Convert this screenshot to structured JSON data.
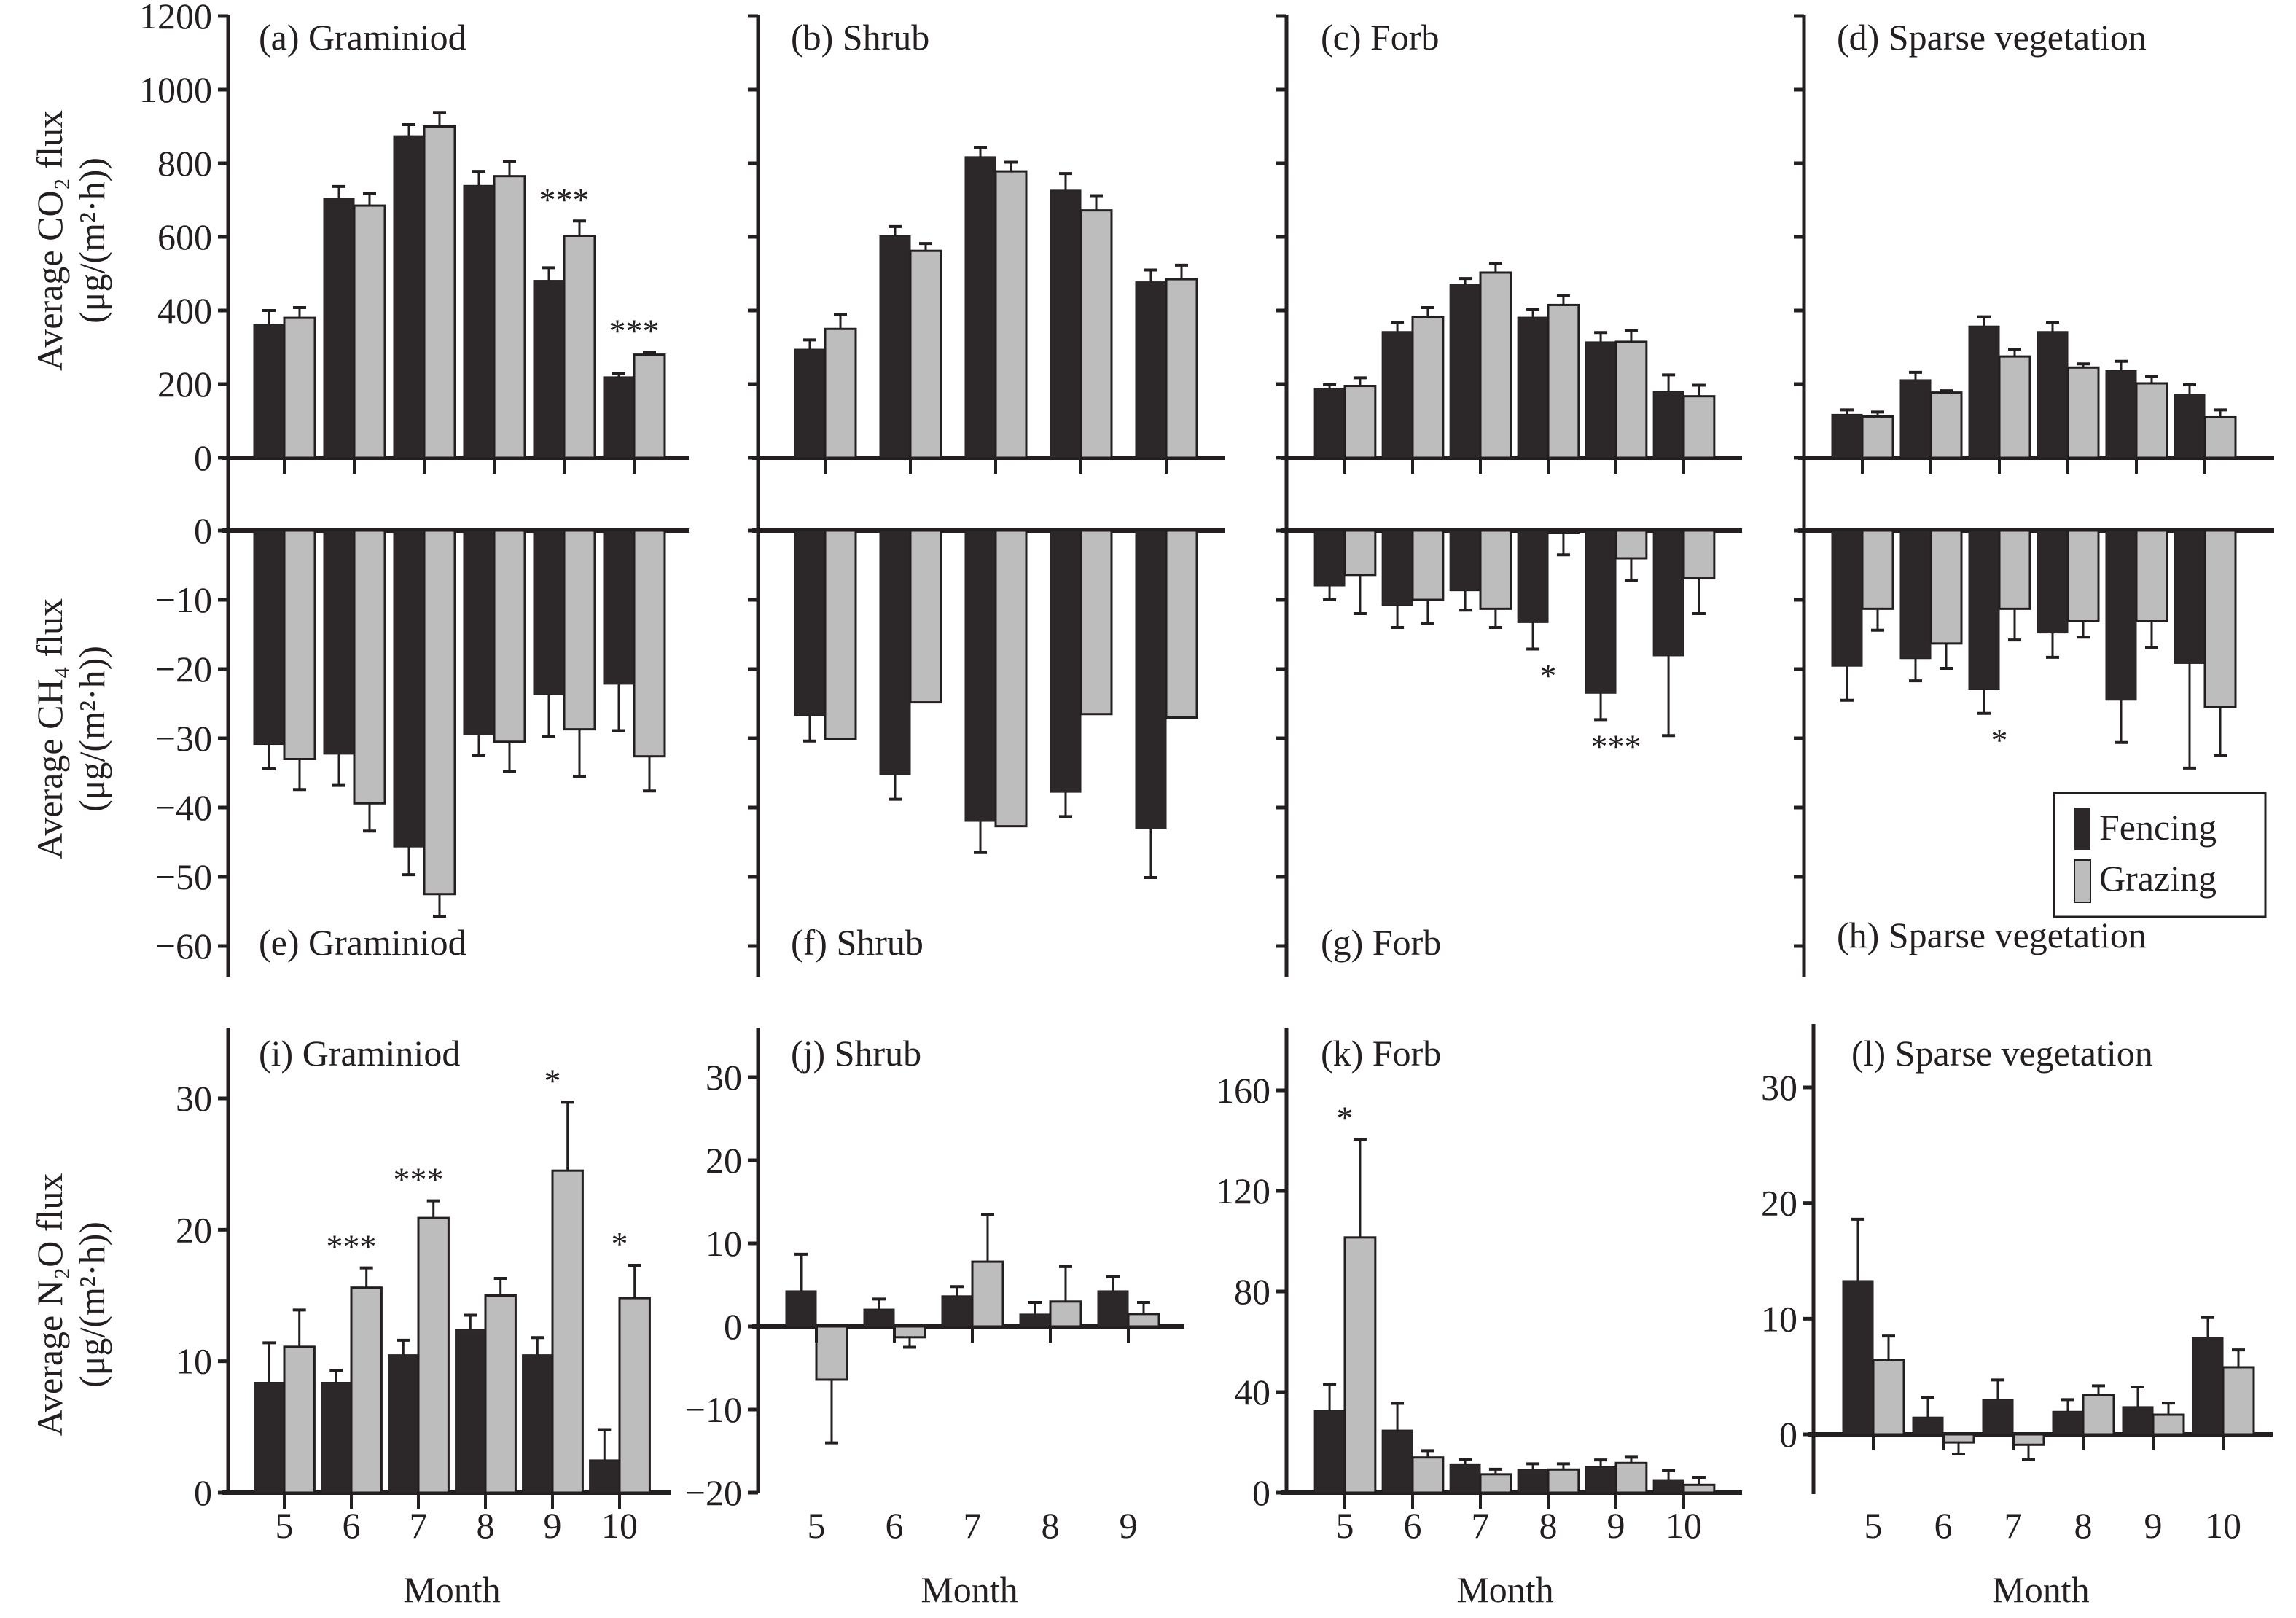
{
  "figure": {
    "legend": [
      {
        "name": "Fencing",
        "color": "#2c2829"
      },
      {
        "name": "Grazing",
        "color": "#bdbdbd"
      }
    ],
    "xlabel": "Month",
    "row_ylabels": {
      "co2": [
        "Average CO₂ flux",
        "(μg/(m²·h))"
      ],
      "ch4": [
        "Average CH₄ flux",
        "(μg/(m²·h))"
      ],
      "n2o": [
        "Average N₂O flux",
        "(μg/(m²·h))"
      ]
    }
  },
  "chart_data": [
    {
      "id": "a",
      "type": "bar",
      "row": "co2",
      "title": "(a) Graminiod",
      "categories": [
        "5",
        "6",
        "7",
        "8",
        "9",
        "10"
      ],
      "ylim": [
        0,
        1200
      ],
      "yticks": [
        0,
        200,
        400,
        600,
        800,
        1000,
        1200
      ],
      "show_yticklabels": true,
      "show_xticklabels": false,
      "series": [
        {
          "name": "Fencing",
          "values": [
            362,
            705,
            875,
            740,
            482,
            220
          ],
          "errors": [
            38,
            32,
            30,
            38,
            34,
            8
          ]
        },
        {
          "name": "Grazing",
          "values": [
            380,
            685,
            900,
            765,
            603,
            280
          ],
          "errors": [
            28,
            32,
            38,
            40,
            40,
            6
          ]
        }
      ],
      "significance": [
        null,
        null,
        null,
        null,
        "***",
        "***"
      ],
      "ylabel": "Average CO₂ flux (μg/(m²·h))"
    },
    {
      "id": "b",
      "type": "bar",
      "row": "co2",
      "title": "(b) Shrub",
      "categories": [
        "5",
        "6",
        "7",
        "8",
        "9"
      ],
      "ylim": [
        0,
        1200
      ],
      "yticks": [
        0,
        200,
        400,
        600,
        800,
        1000,
        1200
      ],
      "show_yticklabels": false,
      "show_xticklabels": false,
      "series": [
        {
          "name": "Fencing",
          "values": [
            295,
            603,
            818,
            727,
            478
          ],
          "errors": [
            25,
            25,
            25,
            45,
            32
          ]
        },
        {
          "name": "Grazing",
          "values": [
            350,
            562,
            778,
            672,
            485
          ],
          "errors": [
            40,
            20,
            25,
            40,
            38
          ]
        }
      ],
      "significance": [
        null,
        null,
        null,
        null,
        null
      ]
    },
    {
      "id": "c",
      "type": "bar",
      "row": "co2",
      "title": "(c) Forb",
      "categories": [
        "5",
        "6",
        "7",
        "8",
        "9",
        "10"
      ],
      "ylim": [
        0,
        1200
      ],
      "yticks": [
        0,
        200,
        400,
        600,
        800,
        1000,
        1200
      ],
      "show_yticklabels": false,
      "show_xticklabels": false,
      "series": [
        {
          "name": "Fencing",
          "values": [
            188,
            343,
            472,
            382,
            315,
            180
          ],
          "errors": [
            10,
            25,
            15,
            20,
            25,
            45
          ]
        },
        {
          "name": "Grazing",
          "values": [
            195,
            383,
            503,
            415,
            315,
            167
          ],
          "errors": [
            22,
            25,
            25,
            25,
            30,
            30
          ]
        }
      ],
      "significance": [
        null,
        null,
        null,
        null,
        null,
        null
      ]
    },
    {
      "id": "d",
      "type": "bar",
      "row": "co2",
      "title": "(d) Sparse vegetation",
      "categories": [
        "5",
        "6",
        "7",
        "8",
        "9",
        "10"
      ],
      "ylim": [
        0,
        1200
      ],
      "yticks": [
        0,
        200,
        400,
        600,
        800,
        1000,
        1200
      ],
      "show_yticklabels": false,
      "show_xticklabels": false,
      "series": [
        {
          "name": "Fencing",
          "values": [
            118,
            212,
            358,
            343,
            237,
            173
          ],
          "errors": [
            12,
            20,
            25,
            25,
            25,
            25
          ]
        },
        {
          "name": "Grazing",
          "values": [
            112,
            177,
            275,
            245,
            202,
            110
          ],
          "errors": [
            12,
            5,
            20,
            10,
            18,
            20
          ]
        }
      ],
      "significance": [
        null,
        null,
        null,
        null,
        null,
        null
      ]
    },
    {
      "id": "e",
      "type": "bar",
      "row": "ch4",
      "title": "(e) Graminiod",
      "categories": [
        "5",
        "6",
        "7",
        "8",
        "9",
        "10"
      ],
      "ylim": [
        -65,
        0
      ],
      "yticks": [
        0,
        -10,
        -20,
        -30,
        -40,
        -50,
        -60
      ],
      "show_yticklabels": true,
      "show_xticklabels": false,
      "series": [
        {
          "name": "Fencing",
          "values": [
            -30.9,
            -32.3,
            -45.7,
            -29.5,
            -23.7,
            -22.2
          ],
          "errors": [
            3.5,
            4.5,
            4,
            3,
            6,
            6.7
          ]
        },
        {
          "name": "Grazing",
          "values": [
            -33,
            -39.4,
            -52.5,
            -30.5,
            -28.7,
            -32.6
          ],
          "errors": [
            4.4,
            4,
            3.2,
            4.3,
            6.8,
            5
          ]
        }
      ],
      "significance": [
        null,
        null,
        null,
        null,
        null,
        null
      ],
      "ylabel": "Average CH₄ flux (μg/(m²·h))"
    },
    {
      "id": "f",
      "type": "bar",
      "row": "ch4",
      "title": "(f) Shrub",
      "categories": [
        "5",
        "6",
        "7",
        "8",
        "9"
      ],
      "ylim": [
        -65,
        0
      ],
      "yticks": [
        0,
        -10,
        -20,
        -30,
        -40,
        -50,
        -60
      ],
      "show_yticklabels": false,
      "show_xticklabels": false,
      "series": [
        {
          "name": "Fencing",
          "values": [
            -26.7,
            -35.3,
            -42,
            -37.8,
            -43.1
          ],
          "errors": [
            3.7,
            3.5,
            4.5,
            3.5,
            7
          ]
        },
        {
          "name": "Grazing",
          "values": [
            -30.1,
            -24.8,
            -42.7,
            -26.5,
            -27
          ]
        },
        {
          "name": "_",
          "values": []
        }
      ],
      "significance": [
        null,
        null,
        null,
        null,
        null
      ]
    },
    {
      "id": "g",
      "type": "bar",
      "row": "ch4",
      "title": "(g) Forb",
      "categories": [
        "5",
        "6",
        "7",
        "8",
        "9",
        "10"
      ],
      "ylim": [
        -65,
        0
      ],
      "yticks": [
        0,
        -10,
        -20,
        -30,
        -40,
        -50,
        -60
      ],
      "show_yticklabels": false,
      "show_xticklabels": false,
      "series": [
        {
          "name": "Fencing",
          "values": [
            -8,
            -10.8,
            -8.7,
            -13.3,
            -23.5,
            -18.1
          ],
          "errors": [
            2,
            3.2,
            2.8,
            3.8,
            3.8,
            11.5
          ]
        },
        {
          "name": "Grazing",
          "values": [
            -6.4,
            -10,
            -11.3,
            -0.3,
            -4,
            -6.9
          ],
          "errors": [
            5.6,
            3.4,
            2.7,
            3.2,
            3.2,
            5.1
          ]
        }
      ],
      "significance": [
        null,
        null,
        null,
        "*",
        "***",
        null
      ]
    },
    {
      "id": "h",
      "type": "bar",
      "row": "ch4",
      "title": "(h) Sparse vegetation",
      "categories": [
        "5",
        "6",
        "7",
        "8",
        "9",
        "10"
      ],
      "ylim": [
        -65,
        0
      ],
      "yticks": [
        0,
        -10,
        -20,
        -30,
        -40,
        -50,
        -60
      ],
      "show_yticklabels": false,
      "show_xticklabels": false,
      "series": [
        {
          "name": "Fencing",
          "values": [
            -19.6,
            -18.5,
            -23,
            -14.8,
            -24.5,
            -19.2
          ],
          "errors": [
            4.9,
            3.2,
            3.4,
            3.5,
            6.1,
            15.1
          ]
        },
        {
          "name": "Grazing",
          "values": [
            -11.3,
            -16.3,
            -11.3,
            -13,
            -13,
            -25.5
          ],
          "errors": [
            3.1,
            3.6,
            4.5,
            2.4,
            3.9,
            7
          ]
        }
      ],
      "significance": [
        null,
        null,
        "*",
        null,
        null,
        null
      ]
    },
    {
      "id": "i",
      "type": "bar",
      "row": "n2o",
      "title": "(i) Graminiod",
      "categories": [
        "5",
        "6",
        "7",
        "8",
        "9",
        "10"
      ],
      "ylim": [
        0,
        35
      ],
      "yticks": [
        0,
        10,
        20,
        30
      ],
      "show_yticklabels": true,
      "show_xticklabels": true,
      "series": [
        {
          "name": "Fencing",
          "values": [
            8.4,
            8.4,
            10.5,
            12.4,
            10.5,
            2.5
          ],
          "errors": [
            3,
            0.9,
            1.1,
            1.1,
            1.3,
            2.3
          ]
        },
        {
          "name": "Grazing",
          "values": [
            11.1,
            15.6,
            20.9,
            15,
            24.5,
            14.8
          ],
          "errors": [
            2.8,
            1.5,
            1.3,
            1.3,
            5.2,
            2.5
          ]
        }
      ],
      "significance": [
        null,
        "***",
        "***",
        null,
        "*",
        "*"
      ],
      "ylabel": "Average N₂O flux (μg/(m²·h))"
    },
    {
      "id": "j",
      "type": "bar",
      "row": "n2o",
      "title": "(j) Shrub",
      "categories": [
        "5",
        "6",
        "7",
        "8",
        "9"
      ],
      "ylim": [
        -20,
        35
      ],
      "yticks": [
        -20,
        -10,
        0,
        10,
        20,
        30
      ],
      "show_yticklabels": true,
      "show_xticklabels": true,
      "series": [
        {
          "name": "Fencing",
          "values": [
            4.3,
            2.1,
            3.7,
            1.5,
            4.3
          ],
          "errors": [
            4.4,
            1.2,
            1.1,
            1.4,
            1.7
          ]
        },
        {
          "name": "Grazing",
          "values": [
            -6.4,
            -1.3,
            7.8,
            3,
            1.5
          ],
          "errors": [
            7.6,
            1.2,
            5.7,
            4.2,
            1.4
          ]
        }
      ],
      "significance": [
        null,
        null,
        null,
        null,
        null
      ]
    },
    {
      "id": "k",
      "type": "bar",
      "row": "n2o",
      "title": "(k) Forb",
      "categories": [
        "5",
        "6",
        "7",
        "8",
        "9",
        "10"
      ],
      "ylim": [
        0,
        180
      ],
      "yticks": [
        0,
        40,
        80,
        120,
        160
      ],
      "show_yticklabels": true,
      "show_xticklabels": true,
      "series": [
        {
          "name": "Fencing",
          "values": [
            32.7,
            24.9,
            11.2,
            9.2,
            10.3,
            5.2
          ],
          "errors": [
            10.3,
            10.6,
            2,
            2.3,
            2.7,
            3.5
          ]
        },
        {
          "name": "Grazing",
          "values": [
            101.5,
            14,
            7.3,
            9.2,
            11.8,
            3.1
          ],
          "errors": [
            39,
            2.7,
            2,
            2.3,
            2.3,
            3
          ]
        }
      ],
      "significance": [
        "*",
        null,
        null,
        null,
        null,
        null
      ]
    },
    {
      "id": "l",
      "type": "bar",
      "row": "n2o",
      "title": "(l) Sparse vegetation",
      "categories": [
        "5",
        "6",
        "7",
        "8",
        "9",
        "10"
      ],
      "ylim": [
        -5,
        35
      ],
      "yticks": [
        0,
        10,
        20,
        30
      ],
      "show_yticklabels": true,
      "show_xticklabels": true,
      "series": [
        {
          "name": "Fencing",
          "values": [
            13.3,
            1.5,
            3,
            2,
            2.4,
            8.4
          ],
          "errors": [
            5.3,
            1.7,
            1.7,
            1,
            1.7,
            1.7
          ]
        },
        {
          "name": "Grazing",
          "values": [
            6.4,
            -0.7,
            -0.9,
            3.4,
            1.7,
            5.8
          ],
          "errors": [
            2.1,
            1,
            1.3,
            0.8,
            1,
            1.5
          ]
        }
      ],
      "significance": [
        null,
        null,
        null,
        null,
        null,
        null
      ]
    }
  ]
}
